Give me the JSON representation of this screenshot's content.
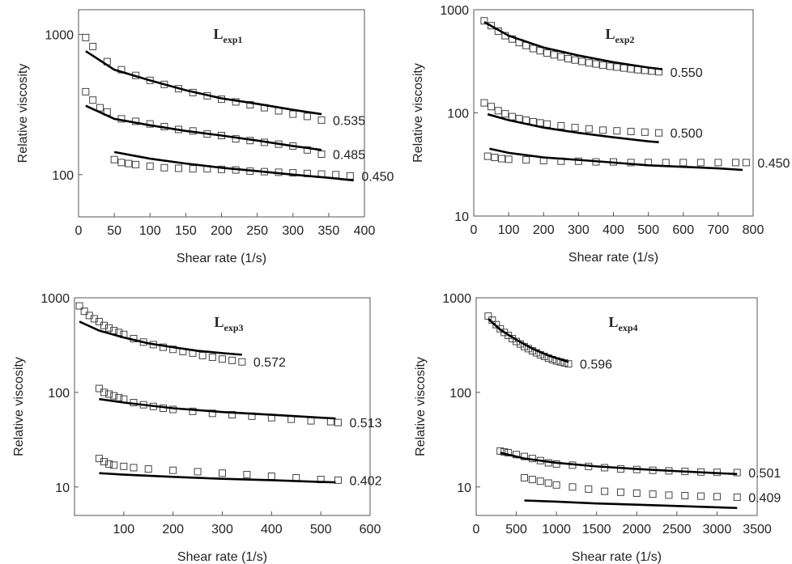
{
  "chart_data": [
    {
      "type": "scatter-line",
      "title": "L",
      "title_sub": "exp1",
      "xlabel": "Shear rate (1/s)",
      "ylabel": "Relative viscosity",
      "log_y": true,
      "xlim": [
        0,
        400
      ],
      "xticks": [
        0,
        50,
        100,
        150,
        200,
        250,
        300,
        350,
        400
      ],
      "ylim": [
        50,
        1500
      ],
      "yticks": [
        100,
        1000
      ],
      "series": [
        {
          "style": "marker",
          "label": "0.535",
          "x": [
            10,
            20,
            40,
            60,
            80,
            100,
            120,
            140,
            160,
            180,
            200,
            220,
            240,
            260,
            280,
            300,
            320,
            340
          ],
          "values": [
            950,
            820,
            640,
            560,
            510,
            470,
            440,
            410,
            385,
            365,
            345,
            330,
            315,
            300,
            285,
            270,
            260,
            245
          ]
        },
        {
          "style": "line",
          "x": [
            10,
            50,
            100,
            150,
            200,
            250,
            300,
            340
          ],
          "values": [
            760,
            560,
            470,
            400,
            350,
            320,
            290,
            270
          ]
        },
        {
          "style": "marker",
          "label": "0.485",
          "x": [
            10,
            20,
            30,
            40,
            60,
            80,
            100,
            120,
            140,
            160,
            180,
            200,
            220,
            240,
            260,
            280,
            300,
            320,
            340
          ],
          "values": [
            390,
            340,
            300,
            280,
            250,
            240,
            230,
            220,
            210,
            205,
            195,
            190,
            180,
            175,
            170,
            165,
            160,
            150,
            140
          ]
        },
        {
          "style": "line",
          "x": [
            10,
            50,
            100,
            150,
            200,
            250,
            300,
            340
          ],
          "values": [
            310,
            250,
            225,
            205,
            190,
            175,
            160,
            150
          ]
        },
        {
          "style": "marker",
          "label": "0.450",
          "x": [
            50,
            60,
            70,
            80,
            100,
            120,
            140,
            160,
            180,
            200,
            220,
            240,
            260,
            280,
            300,
            320,
            340,
            360,
            380
          ],
          "values": [
            128,
            122,
            120,
            118,
            115,
            112,
            111,
            110,
            110,
            109,
            108,
            106,
            105,
            104,
            103,
            102,
            101,
            100,
            98
          ]
        },
        {
          "style": "line",
          "x": [
            50,
            100,
            150,
            200,
            250,
            300,
            350,
            385
          ],
          "values": [
            145,
            130,
            120,
            112,
            106,
            100,
            95,
            91
          ]
        }
      ]
    },
    {
      "type": "scatter-line",
      "title": "L",
      "title_sub": "exp2",
      "xlabel": "Shear rate (1/s)",
      "ylabel": "Relative viscosity",
      "log_y": true,
      "xlim": [
        0,
        800
      ],
      "xticks": [
        0,
        100,
        200,
        300,
        400,
        500,
        600,
        700,
        800
      ],
      "ylim": [
        10,
        1000
      ],
      "yticks": [
        10,
        100,
        1000
      ],
      "series": [
        {
          "style": "marker",
          "label": "0.550",
          "x": [
            30,
            50,
            70,
            90,
            110,
            130,
            150,
            170,
            190,
            210,
            230,
            250,
            270,
            290,
            310,
            330,
            350,
            370,
            390,
            410,
            430,
            450,
            470,
            490,
            510,
            530
          ],
          "values": [
            780,
            700,
            620,
            560,
            520,
            480,
            450,
            420,
            400,
            380,
            365,
            350,
            335,
            325,
            315,
            305,
            298,
            290,
            283,
            278,
            272,
            267,
            262,
            258,
            254,
            250
          ]
        },
        {
          "style": "line",
          "x": [
            30,
            100,
            200,
            300,
            400,
            500,
            540
          ],
          "values": [
            760,
            560,
            430,
            360,
            310,
            275,
            265
          ]
        },
        {
          "style": "marker",
          "label": "0.500",
          "x": [
            30,
            50,
            70,
            90,
            110,
            130,
            150,
            170,
            190,
            210,
            250,
            290,
            330,
            370,
            410,
            450,
            490,
            530
          ],
          "values": [
            125,
            115,
            105,
            98,
            92,
            88,
            85,
            82,
            80,
            78,
            75,
            72,
            70,
            68,
            67,
            66,
            65,
            64
          ]
        },
        {
          "style": "line",
          "x": [
            40,
            100,
            200,
            300,
            400,
            500,
            530
          ],
          "values": [
            97,
            85,
            72,
            64,
            58,
            53,
            52
          ]
        },
        {
          "style": "marker",
          "label": "0.450",
          "x": [
            40,
            60,
            80,
            100,
            150,
            200,
            250,
            300,
            350,
            400,
            450,
            500,
            550,
            600,
            650,
            700,
            750,
            780
          ],
          "values": [
            38,
            37,
            36,
            35.5,
            35,
            34.5,
            34,
            34,
            33.5,
            33.5,
            33,
            33,
            33,
            33,
            33,
            33,
            33,
            33
          ]
        },
        {
          "style": "line",
          "x": [
            45,
            100,
            200,
            300,
            400,
            500,
            600,
            700,
            770
          ],
          "values": [
            45,
            41,
            37,
            35,
            33,
            31,
            30,
            29,
            28
          ]
        }
      ]
    },
    {
      "type": "scatter-line",
      "title": "L",
      "title_sub": "exp3",
      "xlabel": "Shear rate (1/s)",
      "ylabel": "Relative viscosity",
      "log_y": true,
      "xlim": [
        0,
        600
      ],
      "xticks": [
        100,
        200,
        300,
        400,
        500,
        600
      ],
      "ylim": [
        5,
        1000
      ],
      "yticks": [
        10,
        100,
        1000
      ],
      "series": [
        {
          "style": "marker",
          "label": "0.572",
          "x": [
            10,
            20,
            30,
            40,
            50,
            60,
            70,
            80,
            90,
            100,
            120,
            140,
            160,
            180,
            200,
            220,
            240,
            260,
            280,
            300,
            320,
            340
          ],
          "values": [
            820,
            720,
            650,
            600,
            560,
            510,
            480,
            450,
            430,
            410,
            370,
            340,
            320,
            300,
            285,
            270,
            260,
            245,
            235,
            225,
            218,
            210
          ]
        },
        {
          "style": "line",
          "x": [
            10,
            50,
            100,
            150,
            200,
            250,
            300,
            340
          ],
          "values": [
            560,
            450,
            380,
            330,
            300,
            275,
            260,
            250
          ]
        },
        {
          "style": "marker",
          "label": "0.513",
          "x": [
            50,
            60,
            70,
            80,
            90,
            100,
            120,
            140,
            160,
            180,
            200,
            240,
            280,
            320,
            360,
            400,
            440,
            480,
            520,
            535
          ],
          "values": [
            110,
            100,
            96,
            92,
            88,
            85,
            78,
            74,
            71,
            68,
            66,
            63,
            60,
            58,
            56,
            54,
            52,
            50,
            49,
            48
          ]
        },
        {
          "style": "line",
          "x": [
            50,
            100,
            200,
            300,
            400,
            500,
            530
          ],
          "values": [
            85,
            78,
            68,
            62,
            58,
            54,
            53
          ]
        },
        {
          "style": "marker",
          "label": "0.402",
          "x": [
            50,
            60,
            70,
            80,
            100,
            120,
            150,
            200,
            250,
            300,
            350,
            400,
            450,
            500,
            535
          ],
          "values": [
            20,
            18.5,
            17.5,
            17,
            16.5,
            16,
            15.5,
            15,
            14.5,
            14,
            13.5,
            13,
            12.5,
            12,
            11.8
          ]
        },
        {
          "style": "line",
          "x": [
            50,
            100,
            200,
            300,
            400,
            500,
            530
          ],
          "values": [
            14,
            13.5,
            12.8,
            12.2,
            11.8,
            11.3,
            11.2
          ]
        }
      ]
    },
    {
      "type": "scatter-line",
      "title": "L",
      "title_sub": "exp4",
      "xlabel": "Shear rate (1/s)",
      "ylabel": "Relative viscosity",
      "log_y": true,
      "xlim": [
        0,
        3500
      ],
      "xticks": [
        0,
        500,
        1000,
        1500,
        2000,
        2500,
        3000,
        3500
      ],
      "ylim": [
        5,
        1000
      ],
      "yticks": [
        10,
        100,
        1000
      ],
      "series": [
        {
          "style": "marker",
          "label": "0.596",
          "x": [
            150,
            200,
            250,
            300,
            350,
            400,
            450,
            500,
            550,
            600,
            650,
            700,
            750,
            800,
            850,
            900,
            950,
            1000,
            1050,
            1100,
            1150
          ],
          "values": [
            640,
            580,
            520,
            470,
            430,
            400,
            370,
            345,
            325,
            305,
            290,
            275,
            262,
            250,
            240,
            230,
            222,
            215,
            210,
            205,
            200
          ]
        },
        {
          "style": "line",
          "x": [
            150,
            300,
            500,
            700,
            900,
            1150
          ],
          "values": [
            600,
            460,
            360,
            290,
            245,
            210
          ]
        },
        {
          "style": "marker",
          "label": "0.501",
          "x": [
            300,
            350,
            400,
            500,
            600,
            700,
            800,
            900,
            1000,
            1200,
            1400,
            1600,
            1800,
            2000,
            2200,
            2400,
            2600,
            2800,
            3000,
            3250
          ],
          "values": [
            24,
            23.5,
            23,
            22,
            21,
            20,
            19,
            18,
            17.5,
            17,
            16.5,
            16,
            15.5,
            15.3,
            15,
            14.8,
            14.6,
            14.4,
            14.3,
            14.2
          ]
        },
        {
          "style": "line",
          "x": [
            300,
            600,
            1000,
            1500,
            2000,
            2500,
            3000,
            3250
          ],
          "values": [
            23,
            20,
            18,
            16.5,
            15.5,
            14.7,
            14,
            13.7
          ]
        },
        {
          "style": "marker",
          "label": "0.409",
          "x": [
            600,
            700,
            800,
            900,
            1000,
            1200,
            1400,
            1600,
            1800,
            2000,
            2200,
            2400,
            2600,
            2800,
            3000,
            3250
          ],
          "values": [
            12.5,
            12,
            11.5,
            11,
            10.5,
            10,
            9.5,
            9,
            8.8,
            8.6,
            8.4,
            8.2,
            8.1,
            8,
            7.9,
            7.8
          ]
        },
        {
          "style": "line",
          "x": [
            600,
            1000,
            1500,
            2000,
            2500,
            3000,
            3250
          ],
          "values": [
            7.2,
            7,
            6.7,
            6.5,
            6.3,
            6.1,
            6
          ]
        }
      ]
    }
  ]
}
